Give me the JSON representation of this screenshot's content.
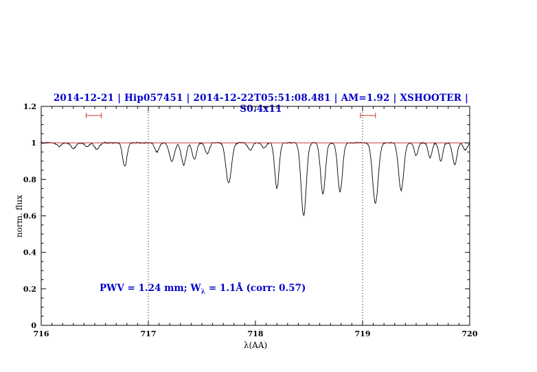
{
  "header": {
    "title": "2014-12-21 | Hip057451 | 2014-12-22T05:51:08.481 | AM=1.92 | XSHOOTER | S0.4x11"
  },
  "annotation": {
    "part1": "PWV = 1.24 mm; W",
    "sub": "λ",
    "part2": " = 1.1Å (corr: 0.57)"
  },
  "colors": {
    "title_blue": "#0000cc",
    "annotation_blue": "#0000cc",
    "reference_red": "#cc3333",
    "marker_red": "#cc3333",
    "spectrum_black": "#000000"
  },
  "chart_data": {
    "type": "line",
    "title": "2014-12-21 | Hip057451 | 2014-12-22T05:51:08.481 | AM=1.92 | XSHOOTER | S0.4x11",
    "xlabel": "λ(AA)",
    "ylabel": "norm. flux",
    "xlim": [
      716,
      720
    ],
    "ylim": [
      0,
      1.2
    ],
    "grid": false,
    "x_ticks": {
      "values": [
        716,
        717,
        718,
        719,
        720
      ],
      "labels": [
        "716",
        "717",
        "718",
        "719",
        "720"
      ],
      "minor_step": 0.1
    },
    "y_ticks": {
      "values": [
        0,
        0.2,
        0.4,
        0.6,
        0.8,
        1,
        1.2
      ],
      "labels": [
        "0",
        "0.2",
        "0.4",
        "0.6",
        "0.8",
        "1",
        "1.2"
      ],
      "minor_step": 0.05
    },
    "dotted_vlines": [
      717,
      719
    ],
    "reference_line": {
      "y": 1.0
    },
    "range_markers": [
      {
        "x1": 716.42,
        "x2": 716.56,
        "y": 1.15
      },
      {
        "x1": 718.98,
        "x2": 719.12,
        "y": 1.15
      }
    ],
    "annotation_text": "PWV = 1.24 mm; Wλ = 1.1Å (corr: 0.57)",
    "continuum_level": 1.0,
    "noise_amplitude": 0.004,
    "sample_step": 0.005,
    "absorption_lines": [
      {
        "center": 716.17,
        "depth": 0.02,
        "sigma": 0.02
      },
      {
        "center": 716.3,
        "depth": 0.03,
        "sigma": 0.022
      },
      {
        "center": 716.43,
        "depth": 0.02,
        "sigma": 0.02
      },
      {
        "center": 716.52,
        "depth": 0.035,
        "sigma": 0.022
      },
      {
        "center": 716.78,
        "depth": 0.13,
        "sigma": 0.02
      },
      {
        "center": 717.08,
        "depth": 0.05,
        "sigma": 0.02
      },
      {
        "center": 717.22,
        "depth": 0.1,
        "sigma": 0.024
      },
      {
        "center": 717.33,
        "depth": 0.12,
        "sigma": 0.022
      },
      {
        "center": 717.43,
        "depth": 0.09,
        "sigma": 0.02
      },
      {
        "center": 717.55,
        "depth": 0.06,
        "sigma": 0.02
      },
      {
        "center": 717.75,
        "depth": 0.22,
        "sigma": 0.026
      },
      {
        "center": 717.95,
        "depth": 0.04,
        "sigma": 0.02
      },
      {
        "center": 718.08,
        "depth": 0.03,
        "sigma": 0.018
      },
      {
        "center": 718.2,
        "depth": 0.25,
        "sigma": 0.02
      },
      {
        "center": 718.45,
        "depth": 0.4,
        "sigma": 0.024
      },
      {
        "center": 718.63,
        "depth": 0.28,
        "sigma": 0.022
      },
      {
        "center": 718.79,
        "depth": 0.27,
        "sigma": 0.022
      },
      {
        "center": 719.12,
        "depth": 0.33,
        "sigma": 0.026
      },
      {
        "center": 719.36,
        "depth": 0.26,
        "sigma": 0.024
      },
      {
        "center": 719.5,
        "depth": 0.07,
        "sigma": 0.018
      },
      {
        "center": 719.63,
        "depth": 0.08,
        "sigma": 0.018
      },
      {
        "center": 719.73,
        "depth": 0.1,
        "sigma": 0.018
      },
      {
        "center": 719.86,
        "depth": 0.12,
        "sigma": 0.02
      },
      {
        "center": 719.96,
        "depth": 0.04,
        "sigma": 0.018
      }
    ]
  }
}
